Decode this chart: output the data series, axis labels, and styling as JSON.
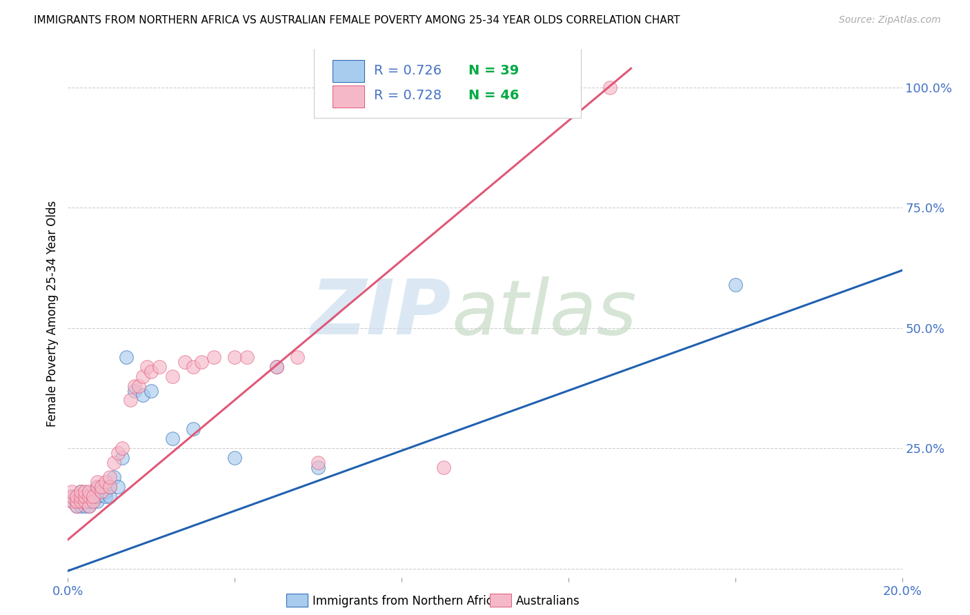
{
  "title": "IMMIGRANTS FROM NORTHERN AFRICA VS AUSTRALIAN FEMALE POVERTY AMONG 25-34 YEAR OLDS CORRELATION CHART",
  "source": "Source: ZipAtlas.com",
  "ylabel_label": "Female Poverty Among 25-34 Year Olds",
  "xlim": [
    0.0,
    0.2
  ],
  "ylim": [
    -0.02,
    1.08
  ],
  "x_ticks": [
    0.0,
    0.04,
    0.08,
    0.12,
    0.16,
    0.2
  ],
  "x_tick_labels": [
    "0.0%",
    "",
    "",
    "",
    "",
    "20.0%"
  ],
  "y_ticks_right": [
    0.0,
    0.25,
    0.5,
    0.75,
    1.0
  ],
  "y_tick_labels_right": [
    "",
    "25.0%",
    "50.0%",
    "75.0%",
    "100.0%"
  ],
  "legend_r1": "R = 0.726",
  "legend_n1": "N = 39",
  "legend_r2": "R = 0.728",
  "legend_n2": "N = 46",
  "color_blue": "#a8ccee",
  "color_pink": "#f5b8c8",
  "line_blue": "#2060b0",
  "line_pink": "#e05878",
  "blue_line_x": [
    0.0,
    0.2
  ],
  "blue_line_y": [
    -0.005,
    0.62
  ],
  "pink_line_x": [
    0.0,
    0.135
  ],
  "pink_line_y": [
    0.06,
    1.04
  ],
  "blue_x": [
    0.001,
    0.001,
    0.002,
    0.002,
    0.002,
    0.003,
    0.003,
    0.003,
    0.004,
    0.004,
    0.004,
    0.005,
    0.005,
    0.005,
    0.006,
    0.006,
    0.006,
    0.007,
    0.007,
    0.007,
    0.008,
    0.008,
    0.009,
    0.009,
    0.01,
    0.01,
    0.011,
    0.012,
    0.013,
    0.014,
    0.016,
    0.018,
    0.02,
    0.025,
    0.03,
    0.04,
    0.05,
    0.06,
    0.16
  ],
  "blue_y": [
    0.14,
    0.15,
    0.13,
    0.14,
    0.15,
    0.13,
    0.14,
    0.16,
    0.13,
    0.14,
    0.15,
    0.13,
    0.14,
    0.15,
    0.14,
    0.15,
    0.16,
    0.14,
    0.15,
    0.17,
    0.16,
    0.17,
    0.15,
    0.16,
    0.15,
    0.17,
    0.19,
    0.17,
    0.23,
    0.44,
    0.37,
    0.36,
    0.37,
    0.27,
    0.29,
    0.23,
    0.42,
    0.21,
    0.59
  ],
  "pink_x": [
    0.001,
    0.001,
    0.001,
    0.002,
    0.002,
    0.002,
    0.003,
    0.003,
    0.003,
    0.004,
    0.004,
    0.004,
    0.005,
    0.005,
    0.005,
    0.006,
    0.006,
    0.007,
    0.007,
    0.008,
    0.008,
    0.009,
    0.01,
    0.01,
    0.011,
    0.012,
    0.013,
    0.015,
    0.016,
    0.017,
    0.018,
    0.019,
    0.02,
    0.022,
    0.025,
    0.028,
    0.03,
    0.032,
    0.035,
    0.04,
    0.043,
    0.05,
    0.055,
    0.06,
    0.09,
    0.13
  ],
  "pink_y": [
    0.14,
    0.15,
    0.16,
    0.13,
    0.14,
    0.15,
    0.14,
    0.15,
    0.16,
    0.14,
    0.15,
    0.16,
    0.13,
    0.15,
    0.16,
    0.14,
    0.15,
    0.17,
    0.18,
    0.16,
    0.17,
    0.18,
    0.17,
    0.19,
    0.22,
    0.24,
    0.25,
    0.35,
    0.38,
    0.38,
    0.4,
    0.42,
    0.41,
    0.42,
    0.4,
    0.43,
    0.42,
    0.43,
    0.44,
    0.44,
    0.44,
    0.42,
    0.44,
    0.22,
    0.21,
    1.0
  ]
}
